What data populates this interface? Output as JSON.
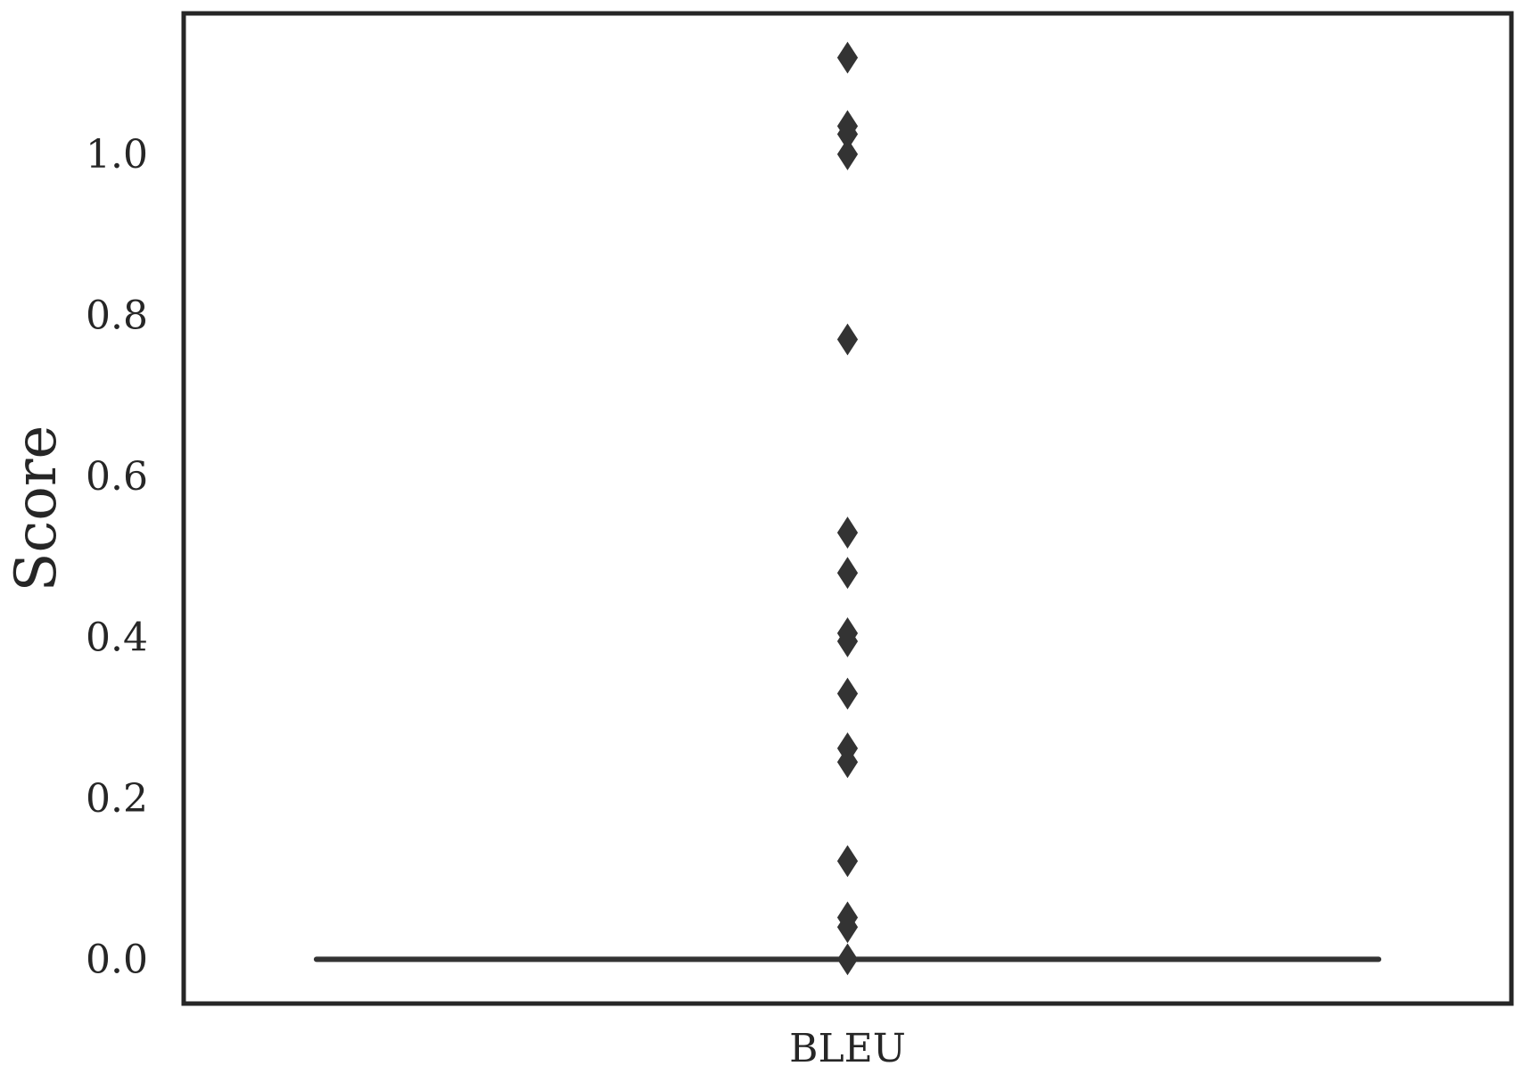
{
  "chart_data": {
    "type": "box",
    "title": "",
    "xlabel": "",
    "ylabel": "Score",
    "categories": [
      "BLEU"
    ],
    "yticks": [
      "0.0",
      "0.2",
      "0.4",
      "0.6",
      "0.8",
      "1.0"
    ],
    "ylim": [
      -0.055,
      1.175
    ],
    "grid": false,
    "legend": "none",
    "colors": {
      "ink": "#333333",
      "frame": "#262626",
      "text": "#262626",
      "background": "#ffffff"
    },
    "boxes": [
      {
        "category": "BLEU",
        "whisker_low": 0.0,
        "q1": 0.0,
        "median": 0.0,
        "q3": 0.0,
        "whisker_high": 0.0,
        "outliers": [
          1.12,
          1.035,
          1.025,
          1.0,
          0.77,
          0.53,
          0.48,
          0.405,
          0.395,
          0.33,
          0.262,
          0.245,
          0.122,
          0.052,
          0.04,
          0.0
        ]
      }
    ]
  }
}
